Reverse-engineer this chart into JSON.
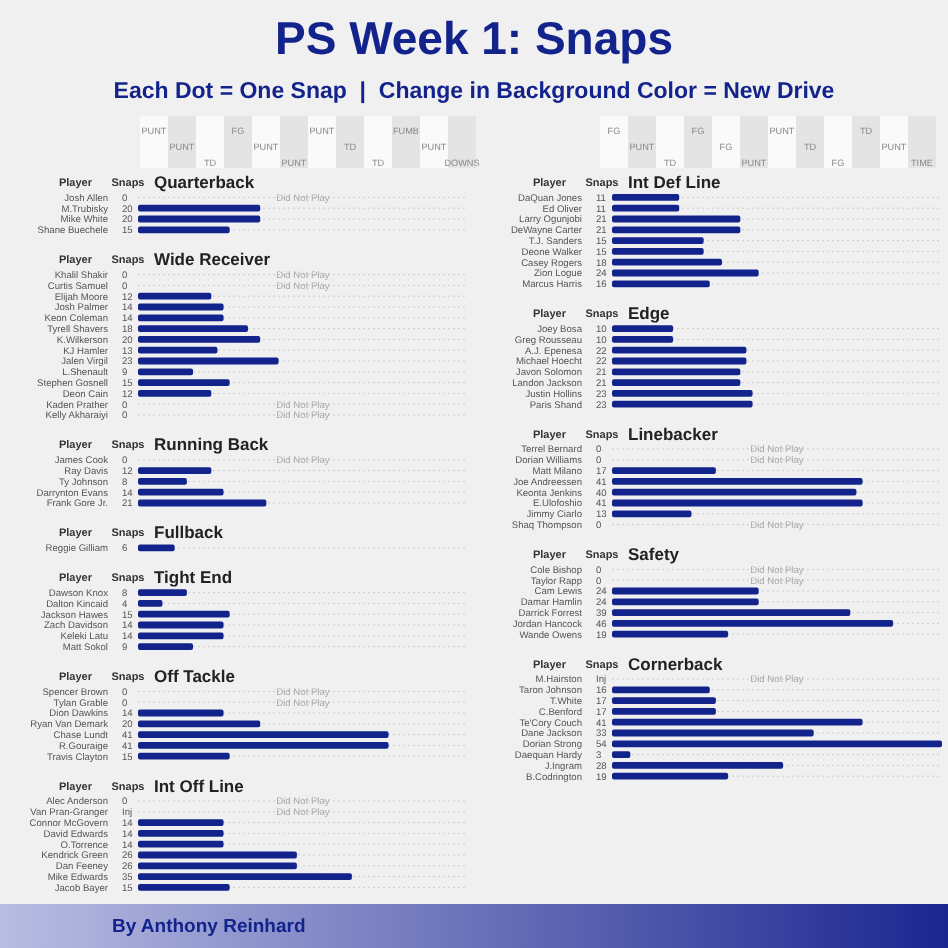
{
  "chart_data": [
    {
      "type": "other",
      "title": "PS Week 1: Snaps",
      "subtitle": "Each Dot = One Snap  |  Change in Background Color = New Drive",
      "annotations": [
        "PUNT",
        "PUNT",
        "TD",
        "FG",
        "PUNT",
        "PUNT",
        "PUNT",
        "TD",
        "TD",
        "FUMB",
        "PUNT",
        "DOWNS",
        "FG",
        "PUNT",
        "TD",
        "FG",
        "FG",
        "PUNT",
        "PUNT",
        "TD",
        "FG",
        "TD",
        "PUNT",
        "TIME",
        "By Anthony Reinhard"
      ]
    },
    {
      "type": "bar",
      "orientation": "horizontal",
      "grid": "y",
      "title": "Quarterback",
      "ylabel": "Player",
      "xlabel": "Snaps",
      "color": "#13238c",
      "categories": [
        "Josh Allen",
        "M.Trubisky",
        "Mike White",
        "Shane Buechele"
      ],
      "values": [
        0,
        20,
        20,
        15
      ],
      "value_labels": [
        "0",
        "20",
        "20",
        "15"
      ],
      "annotations": [
        "Did Not Play"
      ]
    },
    {
      "type": "bar",
      "orientation": "horizontal",
      "grid": "y",
      "title": "Wide Receiver",
      "ylabel": "Player",
      "xlabel": "Snaps",
      "color": "#13238c",
      "categories": [
        "Khalil Shakir",
        "Curtis Samuel",
        "Elijah Moore",
        "Josh Palmer",
        "Keon Coleman",
        "Tyrell Shavers",
        "K.Wilkerson",
        "KJ Hamler",
        "Jalen Virgil",
        "L.Shenault",
        "Stephen Gosnell",
        "Deon Cain",
        "Kaden Prather",
        "Kelly Akharaiyi"
      ],
      "values": [
        0,
        0,
        12,
        14,
        14,
        18,
        20,
        13,
        23,
        9,
        15,
        12,
        0,
        0
      ],
      "value_labels": [
        "0",
        "0",
        "12",
        "14",
        "14",
        "18",
        "20",
        "13",
        "23",
        "9",
        "15",
        "12",
        "0",
        "0"
      ],
      "annotations": [
        "Did Not Play",
        "Did Not Play",
        "Did Not Play",
        "Did Not Play"
      ]
    },
    {
      "type": "bar",
      "orientation": "horizontal",
      "grid": "y",
      "title": "Running Back",
      "ylabel": "Player",
      "xlabel": "Snaps",
      "color": "#13238c",
      "categories": [
        "James Cook",
        "Ray Davis",
        "Ty Johnson",
        "Darrynton Evans",
        "Frank Gore Jr."
      ],
      "values": [
        0,
        12,
        8,
        14,
        21
      ],
      "value_labels": [
        "0",
        "12",
        "8",
        "14",
        "21"
      ],
      "annotations": [
        "Did Not Play"
      ]
    },
    {
      "type": "bar",
      "orientation": "horizontal",
      "grid": "y",
      "title": "Fullback",
      "ylabel": "Player",
      "xlabel": "Snaps",
      "color": "#13238c",
      "categories": [
        "Reggie Gilliam"
      ],
      "values": [
        6
      ],
      "value_labels": [
        "6"
      ]
    },
    {
      "type": "bar",
      "orientation": "horizontal",
      "grid": "y",
      "title": "Tight End",
      "ylabel": "Player",
      "xlabel": "Snaps",
      "color": "#13238c",
      "categories": [
        "Dawson Knox",
        "Dalton Kincaid",
        "Jackson Hawes",
        "Zach Davidson",
        "Keleki Latu",
        "Matt Sokol"
      ],
      "values": [
        8,
        4,
        15,
        14,
        14,
        9
      ],
      "value_labels": [
        "8",
        "4",
        "15",
        "14",
        "14",
        "9"
      ]
    },
    {
      "type": "bar",
      "orientation": "horizontal",
      "grid": "y",
      "title": "Off Tackle",
      "ylabel": "Player",
      "xlabel": "Snaps",
      "color": "#13238c",
      "categories": [
        "Spencer Brown",
        "Tylan Grable",
        "Dion Dawkins",
        "Ryan Van Demark",
        "Chase Lundt",
        "R.Gouraige",
        "Travis Clayton"
      ],
      "values": [
        0,
        0,
        14,
        20,
        41,
        41,
        15
      ],
      "value_labels": [
        "0",
        "0",
        "14",
        "20",
        "41",
        "41",
        "15"
      ],
      "annotations": [
        "Did Not Play",
        "Did Not Play"
      ]
    },
    {
      "type": "bar",
      "orientation": "horizontal",
      "grid": "y",
      "title": "Int Off Line",
      "ylabel": "Player",
      "xlabel": "Snaps",
      "color": "#13238c",
      "categories": [
        "Alec Anderson",
        "Van Pran-Granger",
        "Connor McGovern",
        "David Edwards",
        "O.Torrence",
        "Kendrick Green",
        "Dan Feeney",
        "Mike Edwards",
        "Jacob Bayer"
      ],
      "values": [
        0,
        null,
        14,
        14,
        14,
        26,
        26,
        35,
        15
      ],
      "value_labels": [
        "0",
        "Inj",
        "14",
        "14",
        "14",
        "26",
        "26",
        "35",
        "15"
      ],
      "annotations": [
        "Did Not Play",
        "Did Not Play"
      ]
    },
    {
      "type": "bar",
      "orientation": "horizontal",
      "grid": "y",
      "title": "Int Def Line",
      "ylabel": "Player",
      "xlabel": "Snaps",
      "color": "#13238c",
      "categories": [
        "DaQuan Jones",
        "Ed Oliver",
        "Larry Ogunjobi",
        "DeWayne Carter",
        "T.J. Sanders",
        "Deone Walker",
        "Casey Rogers",
        "Zion Logue",
        "Marcus Harris"
      ],
      "values": [
        11,
        11,
        21,
        21,
        15,
        15,
        18,
        24,
        16
      ],
      "value_labels": [
        "11",
        "11",
        "21",
        "21",
        "15",
        "15",
        "18",
        "24",
        "16"
      ]
    },
    {
      "type": "bar",
      "orientation": "horizontal",
      "grid": "y",
      "title": "Edge",
      "ylabel": "Player",
      "xlabel": "Snaps",
      "color": "#13238c",
      "categories": [
        "Joey Bosa",
        "Greg Rousseau",
        "A.J. Epenesa",
        "Michael Hoecht",
        "Javon Solomon",
        "Landon Jackson",
        "Justin Hollins",
        "Paris Shand"
      ],
      "values": [
        10,
        10,
        22,
        22,
        21,
        21,
        23,
        23
      ],
      "value_labels": [
        "10",
        "10",
        "22",
        "22",
        "21",
        "21",
        "23",
        "23"
      ]
    },
    {
      "type": "bar",
      "orientation": "horizontal",
      "grid": "y",
      "title": "Linebacker",
      "ylabel": "Player",
      "xlabel": "Snaps",
      "color": "#13238c",
      "categories": [
        "Terrel Bernard",
        "Dorian Williams",
        "Matt Milano",
        "Joe Andreessen",
        "Keonta Jenkins",
        "E.Ulofoshio",
        "Jimmy Ciarlo",
        "Shaq Thompson"
      ],
      "values": [
        0,
        0,
        17,
        41,
        40,
        41,
        13,
        0
      ],
      "value_labels": [
        "0",
        "0",
        "17",
        "41",
        "40",
        "41",
        "13",
        "0"
      ],
      "annotations": [
        "Did Not Play",
        "Did Not Play",
        "Did Not Play"
      ]
    },
    {
      "type": "bar",
      "orientation": "horizontal",
      "grid": "y",
      "title": "Safety",
      "ylabel": "Player",
      "xlabel": "Snaps",
      "color": "#13238c",
      "categories": [
        "Cole Bishop",
        "Taylor Rapp",
        "Cam Lewis",
        "Damar Hamlin",
        "Darrick Forrest",
        "Jordan Hancock",
        "Wande Owens"
      ],
      "values": [
        0,
        0,
        24,
        24,
        39,
        46,
        19
      ],
      "value_labels": [
        "0",
        "0",
        "24",
        "24",
        "39",
        "46",
        "19"
      ],
      "annotations": [
        "Did Not Play",
        "Did Not Play"
      ]
    },
    {
      "type": "bar",
      "orientation": "horizontal",
      "grid": "y",
      "title": "Cornerback",
      "ylabel": "Player",
      "xlabel": "Snaps",
      "color": "#13238c",
      "categories": [
        "M.Hairston",
        "Taron Johnson",
        "T.White",
        "C.Benford",
        "Te'Cory Couch",
        "Dane Jackson",
        "Dorian Strong",
        "Daequan Hardy",
        "J.Ingram",
        "B.Codrington"
      ],
      "values": [
        null,
        16,
        17,
        17,
        41,
        33,
        54,
        3,
        28,
        19
      ],
      "value_labels": [
        "Inj",
        "16",
        "17",
        "17",
        "41",
        "33",
        "54",
        "3",
        "28",
        "19"
      ],
      "annotations": [
        "Did Not Play"
      ]
    }
  ]
}
